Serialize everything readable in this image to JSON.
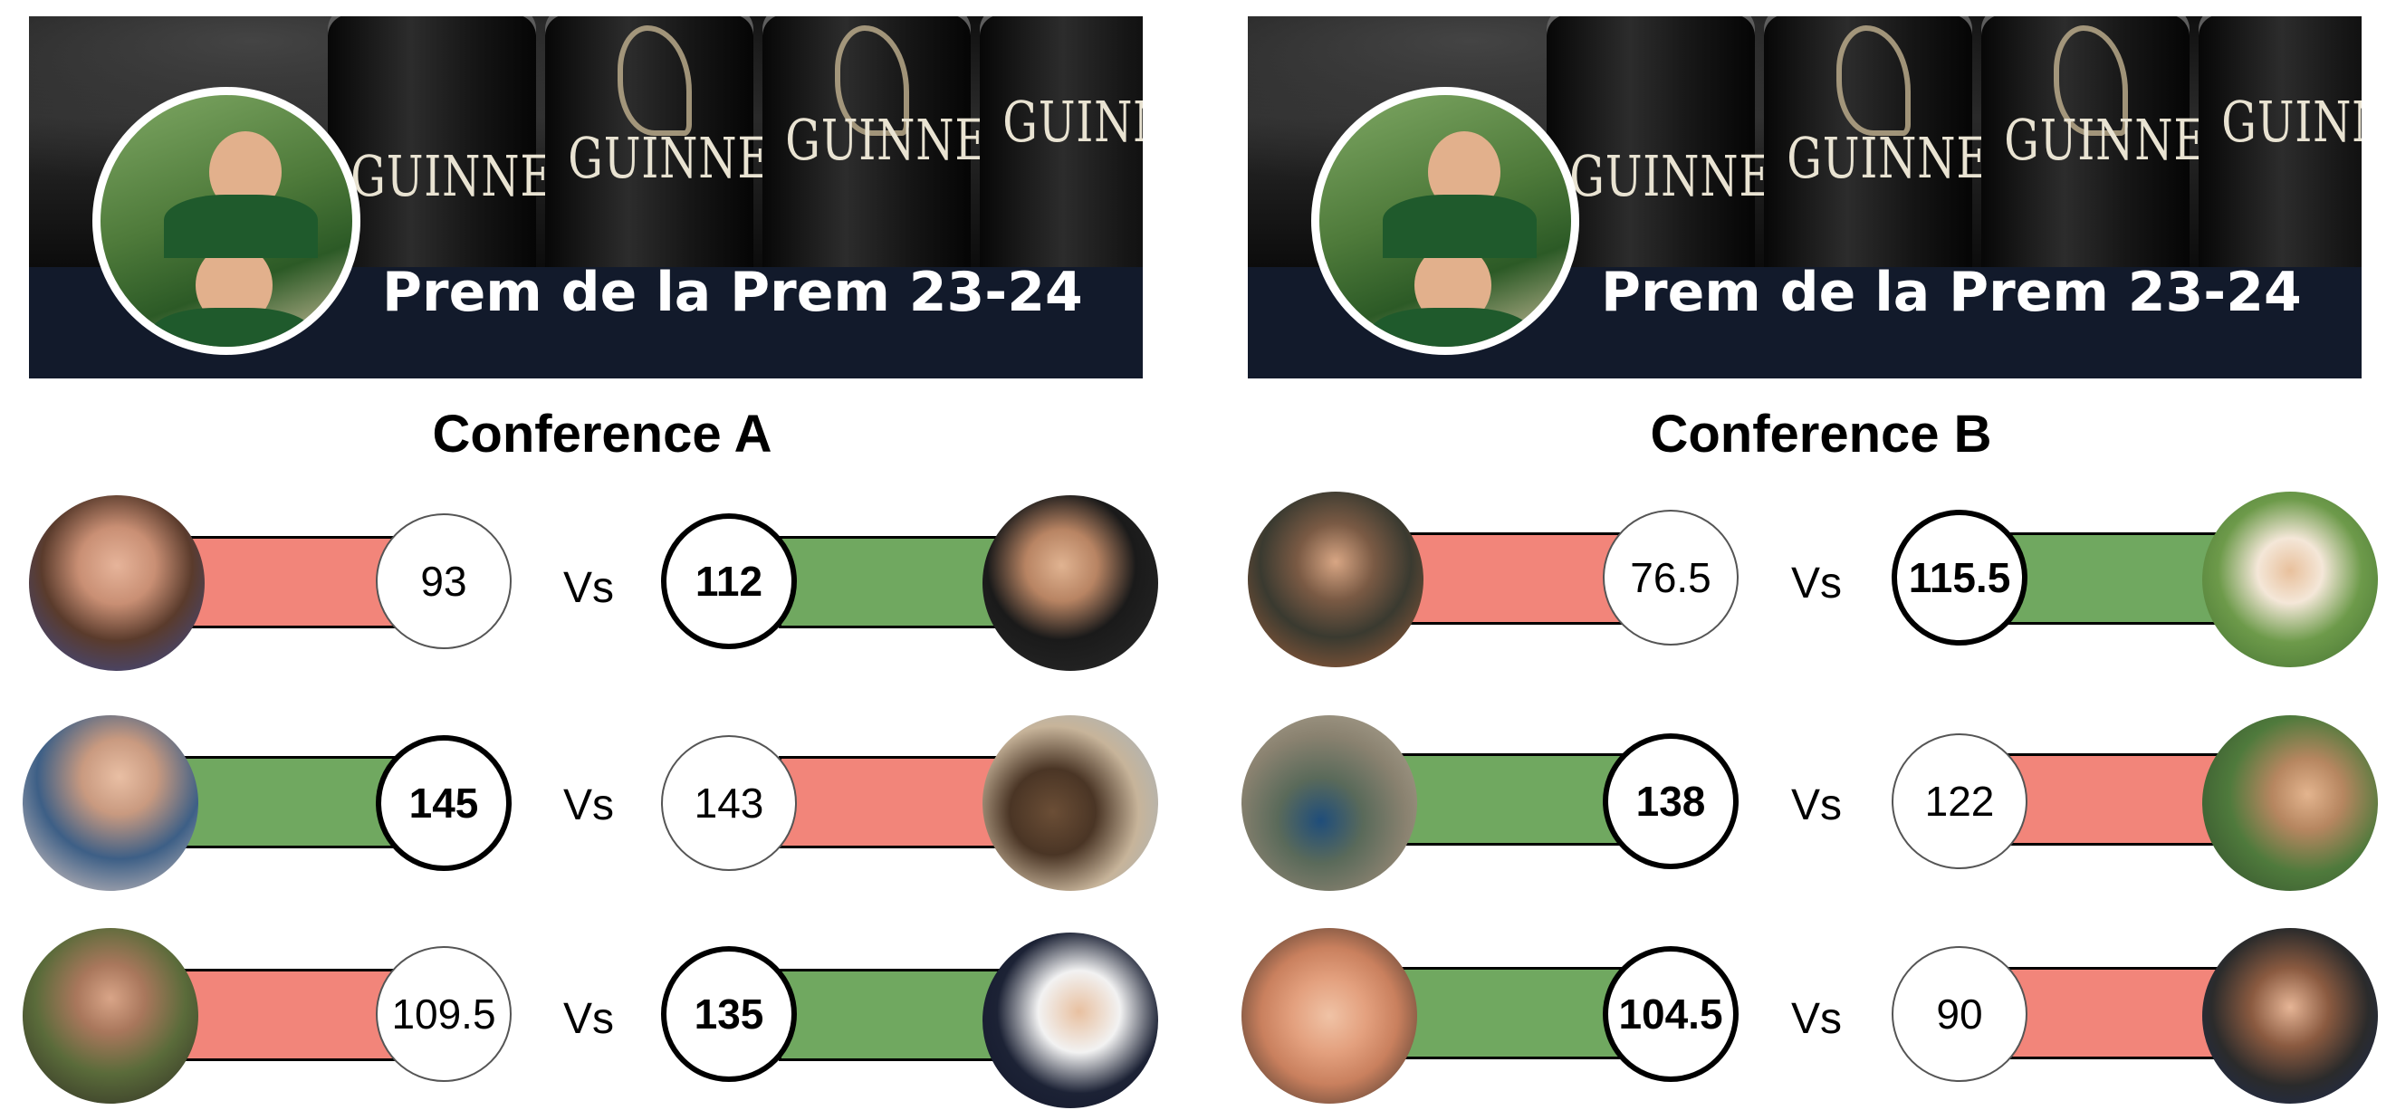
{
  "league_title": "Prem de la Prem 23-24",
  "banner_brand": "GUINNESS",
  "colors": {
    "win_bar": "#70a860",
    "lose_bar": "#f2857a",
    "banner_bar": "#121a2b"
  },
  "conferences": [
    {
      "title": "Conference A",
      "matchups": [
        {
          "home": {
            "score": "93",
            "result": "lose"
          },
          "vs": "Vs",
          "away": {
            "score": "112",
            "result": "win"
          }
        },
        {
          "home": {
            "score": "145",
            "result": "win"
          },
          "vs": "Vs",
          "away": {
            "score": "143",
            "result": "lose"
          }
        },
        {
          "home": {
            "score": "109.5",
            "result": "lose"
          },
          "vs": "Vs",
          "away": {
            "score": "135",
            "result": "win"
          }
        }
      ]
    },
    {
      "title": "Conference B",
      "matchups": [
        {
          "home": {
            "score": "76.5",
            "result": "lose"
          },
          "vs": "Vs",
          "away": {
            "score": "115.5",
            "result": "win"
          }
        },
        {
          "home": {
            "score": "138",
            "result": "win"
          },
          "vs": "Vs",
          "away": {
            "score": "122",
            "result": "lose"
          }
        },
        {
          "home": {
            "score": "104.5",
            "result": "win"
          },
          "vs": "Vs",
          "away": {
            "score": "90",
            "result": "lose"
          }
        }
      ]
    }
  ]
}
